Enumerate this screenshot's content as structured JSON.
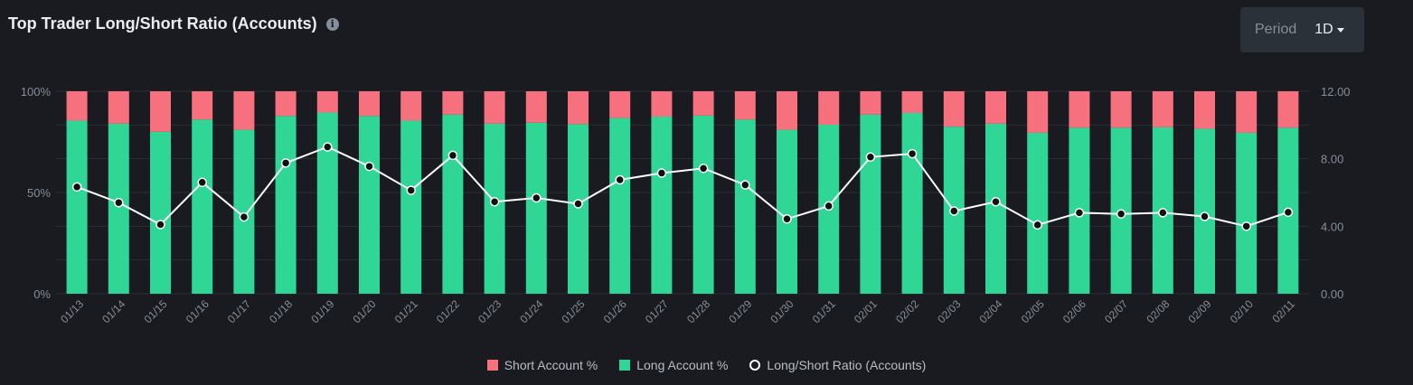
{
  "header": {
    "title": "Top Trader Long/Short Ratio (Accounts)",
    "info_icon": "info-icon",
    "period_label": "Period",
    "period_value": "1D"
  },
  "colors": {
    "background": "#1a1b20",
    "short": "#f6717d",
    "long": "#2fd695",
    "ratio_line": "#ffffff",
    "grid": "#2b2f36",
    "axis_text": "#848e9c"
  },
  "chart_data": {
    "type": "bar",
    "categories": [
      "01/13",
      "01/14",
      "01/15",
      "01/16",
      "01/17",
      "01/18",
      "01/19",
      "01/20",
      "01/21",
      "01/22",
      "01/23",
      "01/24",
      "01/25",
      "01/26",
      "01/27",
      "01/28",
      "01/29",
      "01/30",
      "01/31",
      "02/01",
      "02/02",
      "02/03",
      "02/04",
      "02/05",
      "02/06",
      "02/07",
      "02/08",
      "02/09",
      "02/10",
      "02/11"
    ],
    "stacked": true,
    "series": [
      {
        "name": "Long Account %",
        "type": "bar",
        "axis": "left",
        "values": [
          85.5,
          84.0,
          80.0,
          86.0,
          81.0,
          87.8,
          89.5,
          87.8,
          85.5,
          88.5,
          84.0,
          84.5,
          83.8,
          86.8,
          87.5,
          88.0,
          86.0,
          81.0,
          83.5,
          88.5,
          89.3,
          82.5,
          84.0,
          79.5,
          82.0,
          82.0,
          82.2,
          81.5,
          79.5,
          82.0
        ]
      },
      {
        "name": "Short Account %",
        "type": "bar",
        "axis": "left",
        "values": [
          14.5,
          16.0,
          20.0,
          14.0,
          19.0,
          12.2,
          10.5,
          12.2,
          14.5,
          11.5,
          16.0,
          15.5,
          16.2,
          13.2,
          12.5,
          12.0,
          14.0,
          19.0,
          16.5,
          11.5,
          10.7,
          17.5,
          16.0,
          20.5,
          18.0,
          18.0,
          17.8,
          18.5,
          20.5,
          18.0
        ]
      },
      {
        "name": "Long/Short Ratio (Accounts)",
        "type": "line",
        "axis": "right",
        "values": [
          6.33,
          5.4,
          4.1,
          6.6,
          4.55,
          7.75,
          8.7,
          7.55,
          6.13,
          8.2,
          5.45,
          5.68,
          5.33,
          6.75,
          7.15,
          7.43,
          6.45,
          4.43,
          5.2,
          8.1,
          8.3,
          4.9,
          5.45,
          4.08,
          4.8,
          4.73,
          4.8,
          4.58,
          4.0,
          4.83
        ]
      }
    ],
    "y_left": {
      "ticks": [
        "100%",
        "50%",
        "0%"
      ],
      "ylim": [
        0,
        100
      ]
    },
    "y_right": {
      "ticks": [
        "12.00",
        "8.00",
        "4.00",
        "0.00"
      ],
      "ylim": [
        0,
        12
      ]
    },
    "grid": true,
    "legend_position": "bottom-center"
  },
  "legend": [
    {
      "label": "Short Account %",
      "swatch": "short"
    },
    {
      "label": "Long Account %",
      "swatch": "long"
    },
    {
      "label": "Long/Short Ratio (Accounts)",
      "swatch": "ratio"
    }
  ]
}
